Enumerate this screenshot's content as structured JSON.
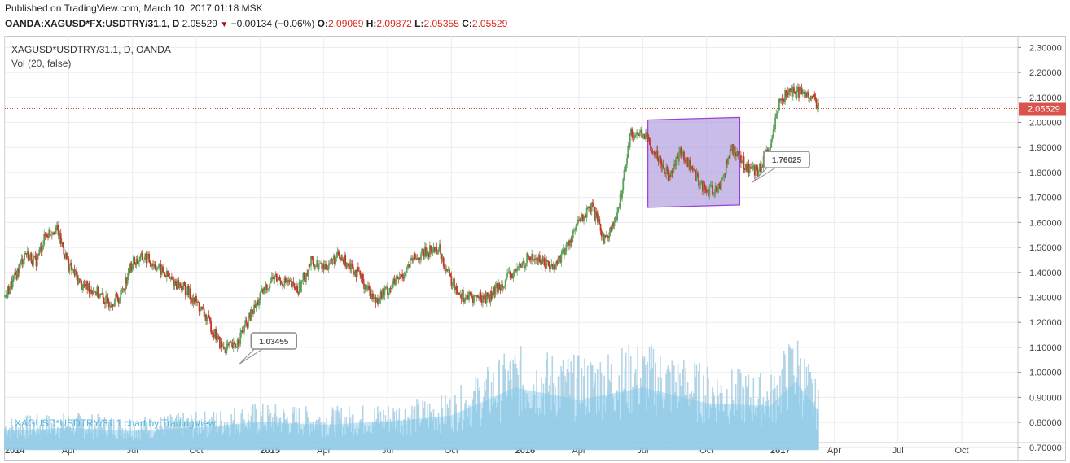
{
  "header": {
    "published": "Published on TradingView.com, March 10, 2017 01:18 MSK",
    "symbol": "OANDA:XAGUSD*FX:USDTRY/31.1, D",
    "last": "2.05529",
    "change": "−0.00134 (−0.06%)",
    "o_label": "O:",
    "o_value": "2.09069",
    "h_label": "H:",
    "h_value": "2.09872",
    "l_label": "L:",
    "l_value": "2.05355",
    "c_label": "C:",
    "c_value": "2.05529"
  },
  "legend": {
    "main": "XAGUSD*USDTRY/31.1, D, OANDA",
    "volume": "Vol (20, false)"
  },
  "watermark": "XAGUSD*USDTRY/31.1 chart by TradingView",
  "colors": {
    "up": "#5ba35b",
    "down": "#c0392b",
    "price_line": "#d0463b",
    "price_tag_bg": "#d9534f",
    "rectangle_fill": "#b49fe0",
    "rectangle_stroke": "#9b3fd6",
    "volume_bar": "#a6cee3",
    "volume_ma": "#7ec8ec",
    "grid": "#ececec",
    "callout_border": "#8c8c8c"
  },
  "chart_data": {
    "type": "candlestick",
    "title": "XAGUSD*USDTRY/31.1, D, OANDA",
    "x_ticks": [
      "2014",
      "Apr",
      "Jul",
      "Oct",
      "2015",
      "Apr",
      "Jul",
      "Oct",
      "2016",
      "Apr",
      "Jul",
      "Oct",
      "2017",
      "Apr",
      "Jul",
      "Oct"
    ],
    "x_tick_bold": [
      "2014",
      "2015",
      "2016",
      "2017"
    ],
    "y_ticks": [
      "2.30000",
      "2.20000",
      "2.10000",
      "2.00000",
      "1.90000",
      "1.80000",
      "1.70000",
      "1.60000",
      "1.50000",
      "1.40000",
      "1.30000",
      "1.20000",
      "1.10000",
      "1.00000",
      "0.90000",
      "0.80000",
      "0.70000"
    ],
    "ylim": [
      0.67,
      2.35
    ],
    "price_scale": "right",
    "price_series": {
      "name": "XAGUSD*USDTRY/31.1",
      "time": [
        2014.0,
        2014.04,
        2014.08,
        2014.12,
        2014.16,
        2014.2,
        2014.25,
        2014.3,
        2014.35,
        2014.4,
        2014.45,
        2014.5,
        2014.55,
        2014.6,
        2014.65,
        2014.7,
        2014.75,
        2014.8,
        2014.85,
        2014.9,
        2014.95,
        2015.0,
        2015.05,
        2015.1,
        2015.15,
        2015.2,
        2015.25,
        2015.3,
        2015.35,
        2015.4,
        2015.45,
        2015.5,
        2015.55,
        2015.6,
        2015.65,
        2015.7,
        2015.75,
        2015.8,
        2015.85,
        2015.9,
        2015.95,
        2016.0,
        2016.05,
        2016.1,
        2016.15,
        2016.2,
        2016.25,
        2016.3,
        2016.35,
        2016.4,
        2016.45,
        2016.5,
        2016.55,
        2016.6,
        2016.65,
        2016.7,
        2016.75,
        2016.8,
        2016.85,
        2016.9,
        2016.95,
        2017.0,
        2017.04,
        2017.08,
        2017.12,
        2017.16,
        2017.19
      ],
      "value": [
        1.3,
        1.38,
        1.48,
        1.44,
        1.55,
        1.58,
        1.43,
        1.35,
        1.33,
        1.28,
        1.3,
        1.44,
        1.46,
        1.42,
        1.37,
        1.34,
        1.28,
        1.2,
        1.1,
        1.1,
        1.2,
        1.3,
        1.38,
        1.36,
        1.33,
        1.44,
        1.42,
        1.46,
        1.44,
        1.37,
        1.29,
        1.33,
        1.38,
        1.45,
        1.48,
        1.5,
        1.36,
        1.3,
        1.3,
        1.3,
        1.36,
        1.4,
        1.46,
        1.45,
        1.42,
        1.5,
        1.6,
        1.66,
        1.53,
        1.62,
        1.95,
        1.96,
        1.88,
        1.79,
        1.88,
        1.8,
        1.72,
        1.74,
        1.9,
        1.83,
        1.8,
        1.9,
        2.1,
        2.12,
        2.12,
        2.11,
        2.06
      ]
    },
    "volume_series": {
      "name": "Vol (20, false)",
      "time": [
        2014.0,
        2014.25,
        2014.5,
        2014.75,
        2015.0,
        2015.25,
        2015.5,
        2015.75,
        2016.0,
        2016.25,
        2016.5,
        2016.75,
        2017.0,
        2017.1,
        2017.19
      ],
      "value": [
        0.07,
        0.08,
        0.07,
        0.08,
        0.1,
        0.09,
        0.1,
        0.12,
        0.22,
        0.2,
        0.23,
        0.18,
        0.16,
        0.26,
        0.13
      ],
      "ma_value": [
        0.06,
        0.07,
        0.06,
        0.07,
        0.09,
        0.08,
        0.09,
        0.11,
        0.2,
        0.16,
        0.2,
        0.15,
        0.14,
        0.22,
        0.12
      ]
    },
    "last_price": 2.05529,
    "last_price_label": "2.05529",
    "annotations": [
      {
        "type": "callout",
        "label": "1.03455",
        "anchor_time": 2014.92,
        "anchor_value": 1.03455
      },
      {
        "type": "callout",
        "label": "1.76025",
        "anchor_time": 2016.93,
        "anchor_value": 1.76025
      },
      {
        "type": "rectangle",
        "time_start": 2016.52,
        "time_end": 2016.88,
        "top_left_value": 2.01,
        "top_right_value": 2.02,
        "bottom_left_value": 1.66,
        "bottom_right_value": 1.67
      }
    ],
    "grid": true,
    "legend_position": "top-left"
  }
}
